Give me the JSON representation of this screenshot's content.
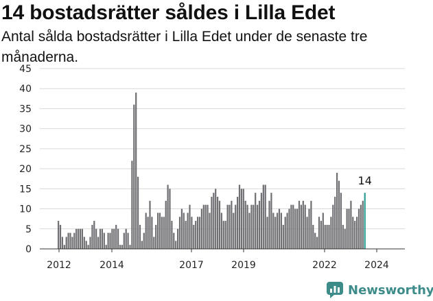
{
  "title": "14 bostadsrätter såldes i Lilla Edet",
  "subtitle": "Antal sålda bostadsrätter i Lilla Edet under de senaste tre månaderna.",
  "logo": {
    "text": "Newsworthy",
    "icon": "newsworthy-logo-icon",
    "color": "#3d8c8a"
  },
  "colors": {
    "bar": "#6e6e73",
    "highlight": "#2a9d96",
    "grid": "#d9d9d9",
    "baseline": "#333333"
  },
  "chart_data": {
    "type": "bar",
    "title": "14 bostadsrätter såldes i Lilla Edet",
    "xlabel": "",
    "ylabel": "",
    "ylim": [
      0,
      45
    ],
    "yticks": [
      "0",
      "5",
      "10",
      "15",
      "20",
      "25",
      "30",
      "35",
      "40",
      "45"
    ],
    "xticks": [
      "2012",
      "2014",
      "2017",
      "2019",
      "2022",
      "2024"
    ],
    "grid": true,
    "highlight_last": true,
    "last_label": "14",
    "series": [
      {
        "values": [
          7,
          6,
          3,
          1,
          3,
          4,
          4,
          3,
          4,
          5,
          5,
          5,
          5,
          3,
          2,
          1,
          3,
          6,
          7,
          5,
          3,
          5,
          5,
          4,
          1,
          4,
          4,
          5,
          5,
          6,
          5,
          1,
          1,
          4,
          5,
          4,
          1,
          22,
          36,
          39,
          18,
          6,
          2,
          4,
          9,
          8,
          12,
          8,
          3,
          6,
          9,
          9,
          8,
          8,
          12,
          16,
          15,
          7,
          4,
          2,
          5,
          8,
          10,
          9,
          7,
          9,
          11,
          8,
          6,
          7,
          8,
          8,
          10,
          11,
          11,
          11,
          9,
          13,
          14,
          15,
          13,
          12,
          9,
          7,
          7,
          11,
          11,
          12,
          9,
          11,
          13,
          16,
          15,
          15,
          12,
          11,
          9,
          11,
          11,
          14,
          11,
          12,
          14,
          16,
          16,
          8,
          12,
          14,
          9,
          8,
          9,
          10,
          9,
          6,
          8,
          9,
          10,
          11,
          11,
          10,
          10,
          12,
          11,
          12,
          11,
          8,
          10,
          12,
          6,
          4,
          3,
          8,
          7,
          9,
          6,
          6,
          6,
          8,
          11,
          13,
          19,
          17,
          14,
          6,
          5,
          10,
          10,
          12,
          8,
          7,
          8,
          10,
          11,
          12,
          14
        ]
      }
    ]
  }
}
